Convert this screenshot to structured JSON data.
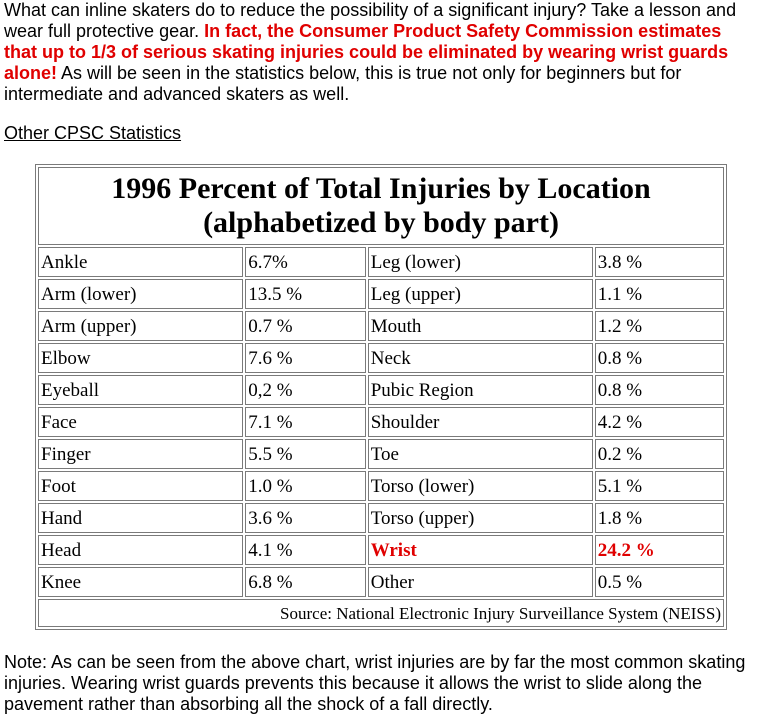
{
  "intro": {
    "part1": "What can inline skaters do to reduce the possibility of a significant injury? Take a lesson and wear full protective gear. ",
    "highlight": "In fact, the Consumer Product Safety Commission estimates that up to 1/3 of serious skating injuries could be eliminated by wearing wrist guards alone!",
    "part2": " As will be seen in the statistics below, this is true not only for beginners but for intermediate and advanced skaters as well."
  },
  "stats_link": "Other CPSC Statistics",
  "table": {
    "title_line1": "1996 Percent of Total Injuries by Location",
    "title_line2": "(alphabetized by body part)",
    "rows": [
      {
        "p1": "Ankle",
        "v1": "6.7%",
        "p2": "Leg (lower)",
        "v2": "3.8 %"
      },
      {
        "p1": "Arm (lower)",
        "v1": "13.5 %",
        "p2": "Leg (upper)",
        "v2": "1.1 %"
      },
      {
        "p1": "Arm (upper)",
        "v1": "0.7 %",
        "p2": "Mouth",
        "v2": "1.2 %"
      },
      {
        "p1": "Elbow",
        "v1": "7.6 %",
        "p2": "Neck",
        "v2": "0.8 %"
      },
      {
        "p1": "Eyeball",
        "v1": "0,2 %",
        "p2": "Pubic Region",
        "v2": "0.8 %"
      },
      {
        "p1": "Face",
        "v1": "7.1 %",
        "p2": "Shoulder",
        "v2": "4.2 %"
      },
      {
        "p1": "Finger",
        "v1": "5.5 %",
        "p2": "Toe",
        "v2": "0.2 %"
      },
      {
        "p1": "Foot",
        "v1": "1.0 %",
        "p2": "Torso (lower)",
        "v2": "5.1 %"
      },
      {
        "p1": "Hand",
        "v1": "3.6 %",
        "p2": "Torso (upper)",
        "v2": "1.8 %"
      },
      {
        "p1": "Head",
        "v1": "4.1 %",
        "p2": "Wrist",
        "v2": "24.2 %"
      },
      {
        "p1": "Knee",
        "v1": "6.8 %",
        "p2": "Other",
        "v2": "0.5 %"
      }
    ],
    "source": "Source: National Electronic Injury Surveillance System (NEISS)"
  },
  "note": "Note: As can be seen from the above chart, wrist injuries are by far the most common skating injuries.  Wearing wrist guards prevents this because it allows the wrist to slide along the pavement rather than absorbing all the shock of a fall directly.",
  "colors": {
    "highlight": "#e00000",
    "border": "#7a7a7a"
  }
}
